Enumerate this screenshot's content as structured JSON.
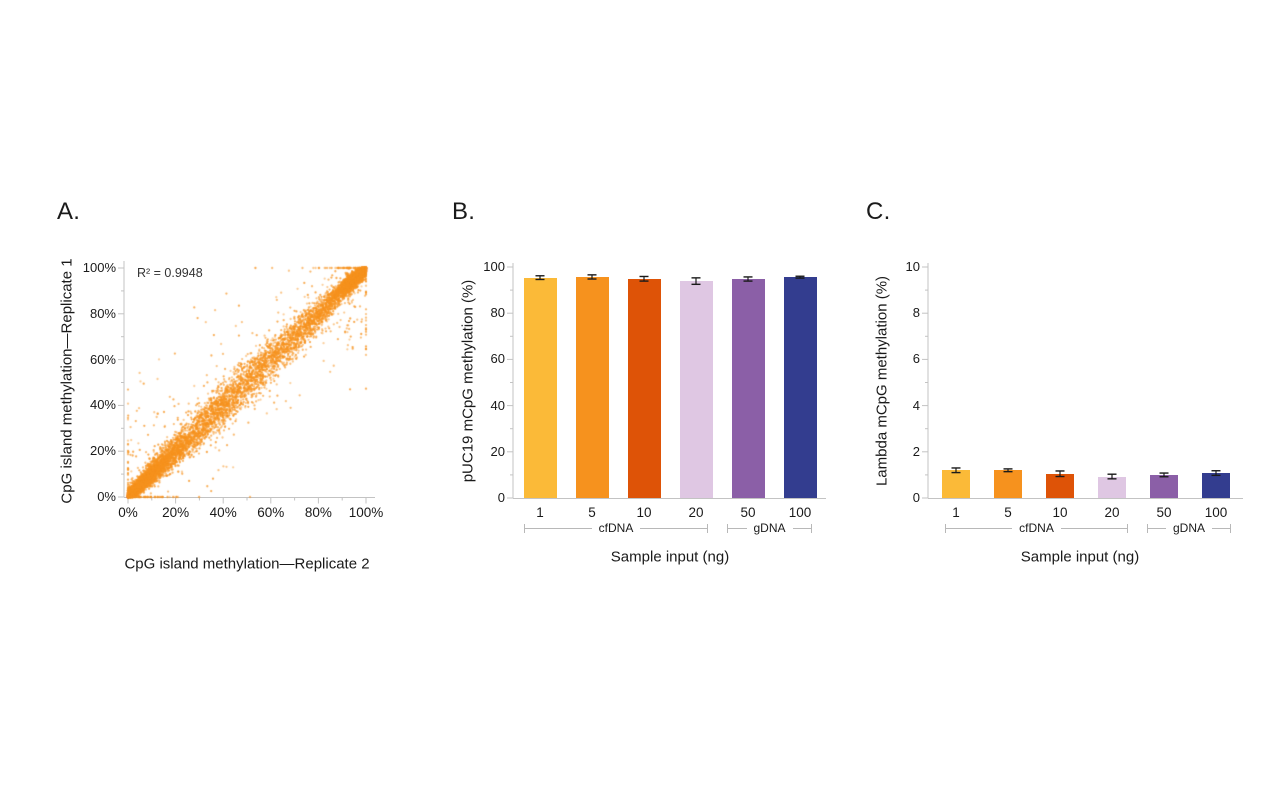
{
  "figure": {
    "background": "#ffffff",
    "panels": [
      {
        "label": "A."
      },
      {
        "label": "B."
      },
      {
        "label": "C."
      }
    ]
  },
  "chart_data": [
    {
      "panel": "A",
      "type": "scatter",
      "title": "",
      "xlabel": "CpG island methylation—Replicate 2",
      "ylabel": "CpG island methylation—Replicate 1",
      "annotation": "R² = 0.9948",
      "r_squared": 0.9948,
      "xlim": [
        0,
        100
      ],
      "ylim": [
        0,
        100
      ],
      "x_tick_values": [
        0,
        20,
        40,
        60,
        80,
        100
      ],
      "x_tick_labels": [
        "0%",
        "20%",
        "40%",
        "60%",
        "80%",
        "100%"
      ],
      "y_tick_values": [
        0,
        20,
        40,
        60,
        80,
        100
      ],
      "y_tick_labels": [
        "0%",
        "20%",
        "40%",
        "60%",
        "80%",
        "100%"
      ],
      "grid": false,
      "point_color": "#F6921E",
      "synthetic_points": {
        "n": 11000,
        "relation": "y ≈ x (replicate agreement)",
        "density": "dense clusters near 0% and 100%, solid diagonal band",
        "noise_sd_pct_range": [
          0.8,
          3.6
        ],
        "outlier_fraction": 0.04
      }
    },
    {
      "panel": "B",
      "type": "bar",
      "title": "",
      "categories": [
        "1",
        "5",
        "10",
        "20",
        "50",
        "100"
      ],
      "values": [
        95.4,
        95.7,
        94.9,
        93.9,
        94.8,
        95.6
      ],
      "errors": [
        0.8,
        0.9,
        1.0,
        1.4,
        0.9,
        0.4
      ],
      "bar_colors": [
        "#FBBA38",
        "#F6921E",
        "#DE5307",
        "#DFC7E3",
        "#8B5FA7",
        "#333D8F"
      ],
      "xlabel": "Sample input (ng)",
      "ylabel": "pUC19 mCpG methylation (%)",
      "ylim": [
        0,
        100
      ],
      "y_tick_values": [
        0,
        20,
        40,
        60,
        80,
        100
      ],
      "grid": false,
      "legend": "none",
      "error_bar_color": "#1a1a1a",
      "groups": [
        {
          "label": "cfDNA",
          "categories": [
            "1",
            "5",
            "10",
            "20"
          ]
        },
        {
          "label": "gDNA",
          "categories": [
            "50",
            "100"
          ]
        }
      ]
    },
    {
      "panel": "C",
      "type": "bar",
      "title": "",
      "categories": [
        "1",
        "5",
        "10",
        "20",
        "50",
        "100"
      ],
      "values": [
        1.2,
        1.2,
        1.05,
        0.93,
        1.0,
        1.08
      ],
      "errors": [
        0.1,
        0.06,
        0.12,
        0.1,
        0.08,
        0.1
      ],
      "bar_colors": [
        "#FBBA38",
        "#F6921E",
        "#DE5307",
        "#DFC7E3",
        "#8B5FA7",
        "#333D8F"
      ],
      "xlabel": "Sample input (ng)",
      "ylabel": "Lambda mCpG methylation (%)",
      "ylim": [
        0,
        10
      ],
      "y_tick_values": [
        0,
        2,
        4,
        6,
        8,
        10
      ],
      "grid": false,
      "legend": "none",
      "error_bar_color": "#1a1a1a",
      "groups": [
        {
          "label": "cfDNA",
          "categories": [
            "1",
            "5",
            "10",
            "20"
          ]
        },
        {
          "label": "gDNA",
          "categories": [
            "50",
            "100"
          ]
        }
      ]
    }
  ]
}
